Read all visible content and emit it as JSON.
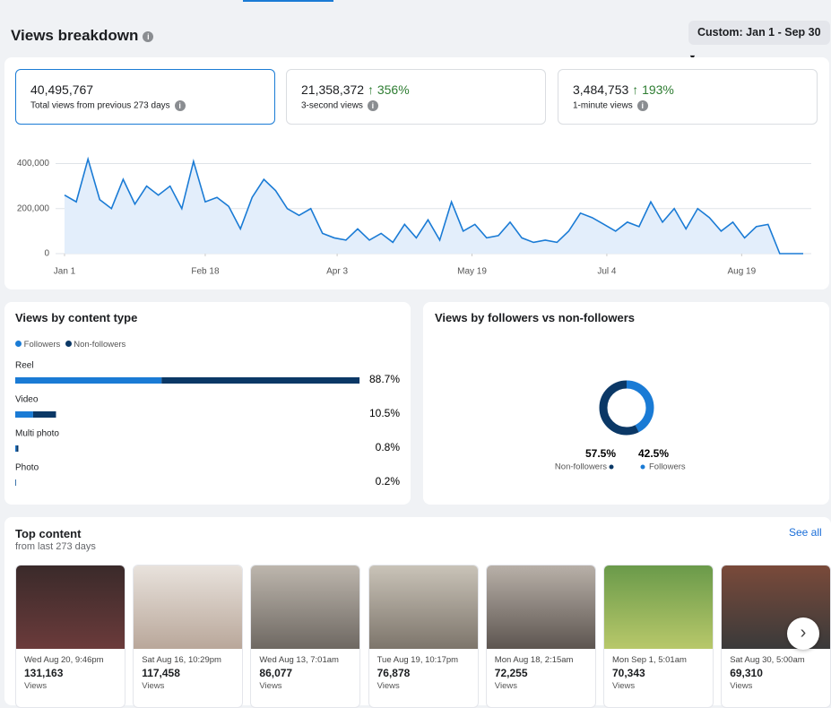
{
  "header": {
    "title": "Views breakdown",
    "date_range": "Custom: Jan 1 - Sep 30"
  },
  "summary_cards": [
    {
      "value": 40495767,
      "label": "40,495,767",
      "caption": "Total views from previous 273 days"
    },
    {
      "value": 21358372,
      "label": "21,358,372",
      "change": 356,
      "change_label": "356%",
      "caption": "3-second views"
    },
    {
      "value": 3484753,
      "label": "3,484,753",
      "change": 193,
      "change_label": "193%",
      "caption": "1-minute views"
    }
  ],
  "chart_data": {
    "type": "line",
    "color": "#1a7bd5",
    "area_color": "#e3eefb",
    "grid": true,
    "x": [
      0,
      4,
      8,
      12,
      16,
      20,
      24,
      28,
      32,
      36,
      40,
      44,
      48,
      52,
      56,
      60,
      64,
      68,
      72,
      76,
      80,
      84,
      88,
      92,
      96,
      100,
      104,
      108,
      112,
      116,
      120,
      124,
      128,
      132,
      136,
      140,
      144,
      148,
      152,
      156,
      160,
      164,
      168,
      172,
      176,
      180,
      184,
      188,
      192,
      196,
      200,
      204,
      208,
      212,
      216,
      220,
      224,
      228,
      232,
      236,
      240,
      244,
      248,
      252
    ],
    "values": [
      260000,
      230000,
      420000,
      240000,
      200000,
      330000,
      220000,
      300000,
      260000,
      300000,
      200000,
      410000,
      230000,
      250000,
      210000,
      110000,
      250000,
      330000,
      280000,
      200000,
      170000,
      200000,
      90000,
      70000,
      60000,
      110000,
      60000,
      90000,
      50000,
      130000,
      70000,
      150000,
      60000,
      230000,
      100000,
      130000,
      70000,
      80000,
      140000,
      70000,
      50000,
      60000,
      50000,
      100000,
      180000,
      160000,
      130000,
      100000,
      140000,
      120000,
      230000,
      140000,
      200000,
      110000,
      200000,
      160000,
      100000,
      140000,
      70000,
      120000,
      130000,
      0,
      0,
      0
    ],
    "xlim": [
      0,
      252
    ],
    "xticks": [
      {
        "value": 0,
        "label": "Jan 1"
      },
      {
        "value": 48,
        "label": "Feb 18"
      },
      {
        "value": 93,
        "label": "Apr 3"
      },
      {
        "value": 139,
        "label": "May 19"
      },
      {
        "value": 185,
        "label": "Jul 4"
      },
      {
        "value": 231,
        "label": "Aug 19"
      }
    ],
    "ylim": [
      0,
      450000
    ],
    "yticks": [
      0,
      {
        "value": 200000,
        "label": "200,000"
      },
      {
        "value": 400000,
        "label": "400,000"
      }
    ]
  },
  "content_type": {
    "title": "Views by content type",
    "legend": [
      {
        "name": "Followers",
        "color": "#1a7bd5"
      },
      {
        "name": "Non-followers",
        "color": "#0b3866"
      }
    ],
    "rows": [
      {
        "label": "Reel",
        "total": 88.7,
        "total_label": "88.7%",
        "followers": 37.7,
        "non_followers": 51.0
      },
      {
        "label": "Video",
        "total": 10.5,
        "total_label": "10.5%",
        "followers": 4.6,
        "non_followers": 5.9
      },
      {
        "label": "Multi photo",
        "total": 0.8,
        "total_label": "0.8%",
        "followers": 0.3,
        "non_followers": 0.5
      },
      {
        "label": "Photo",
        "total": 0.2,
        "total_label": "0.2%",
        "followers": 0.1,
        "non_followers": 0.1
      }
    ]
  },
  "followers_split": {
    "title": "Views by followers vs non-followers",
    "segments": [
      {
        "name": "Non-followers",
        "value": 57.5,
        "label": "57.5%",
        "color": "#0b3866"
      },
      {
        "name": "Followers",
        "value": 42.5,
        "label": "42.5%",
        "color": "#1a7bd5"
      }
    ]
  },
  "top_content": {
    "title": "Top content",
    "subtitle": "from last 273 days",
    "see_all": "See all",
    "items": [
      {
        "date": "Wed Aug 20, 9:46pm",
        "views": 131163,
        "views_label": "131,163",
        "metric": "Views"
      },
      {
        "date": "Sat Aug 16, 10:29pm",
        "views": 117458,
        "views_label": "117,458",
        "metric": "Views"
      },
      {
        "date": "Wed Aug 13, 7:01am",
        "views": 86077,
        "views_label": "86,077",
        "metric": "Views"
      },
      {
        "date": "Tue Aug 19, 10:17pm",
        "views": 76878,
        "views_label": "76,878",
        "metric": "Views"
      },
      {
        "date": "Mon Aug 18, 2:15am",
        "views": 72255,
        "views_label": "72,255",
        "metric": "Views"
      },
      {
        "date": "Mon Sep 1, 5:01am",
        "views": 70343,
        "views_label": "70,343",
        "metric": "Views"
      },
      {
        "date": "Sat Aug 30, 5:00am",
        "views": 69310,
        "views_label": "69,310",
        "metric": "Views"
      }
    ]
  }
}
